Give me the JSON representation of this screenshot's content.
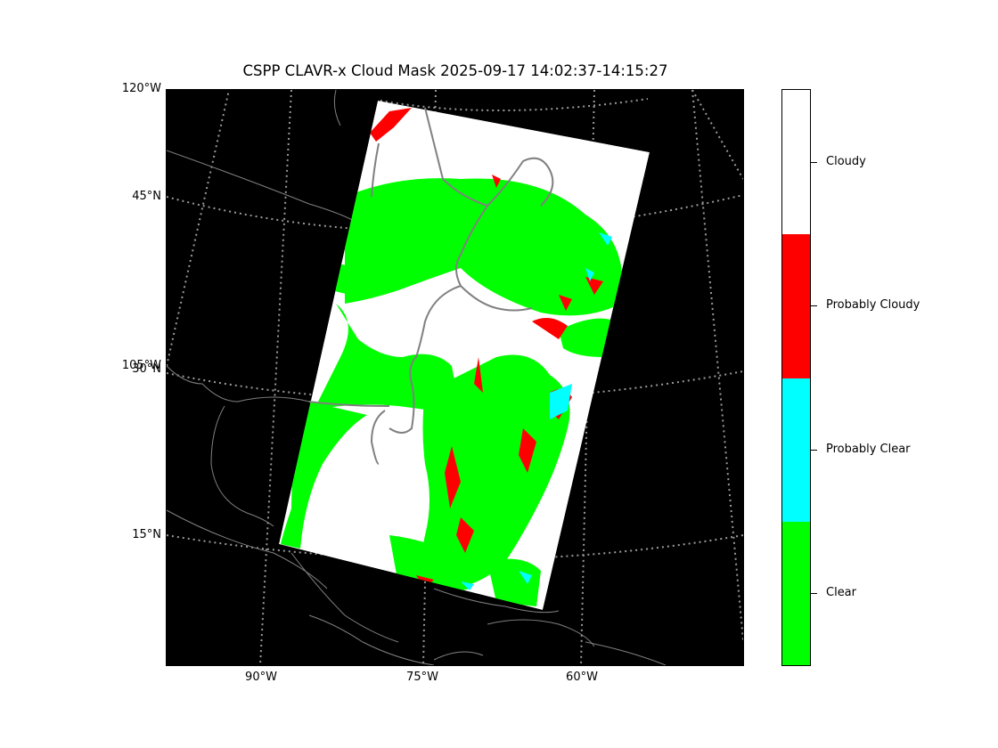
{
  "title": "CSPP CLAVR-x Cloud Mask 2025-09-17 14:02:37-14:15:27",
  "lat_labels": [
    "120°W",
    "45°N",
    "105°W",
    "30°N",
    "15°N"
  ],
  "lon_labels": [
    "90°W",
    "75°W",
    "60°W"
  ],
  "colorbar": {
    "categories": [
      {
        "label": "Cloudy",
        "color": "#ffffff"
      },
      {
        "label": "Probably Cloudy",
        "color": "#ff0000"
      },
      {
        "label": "Probably Clear",
        "color": "#00ffff"
      },
      {
        "label": "Clear",
        "color": "#00ff00"
      }
    ]
  },
  "colors": {
    "map_background": "#000000",
    "coastline": "#808080",
    "graticule": "#9a9a9a",
    "swath_cloudy": "#ffffff",
    "swath_clear": "#00ff00",
    "swath_probably_cloudy": "#ff0000",
    "swath_probably_clear": "#00ffff"
  }
}
